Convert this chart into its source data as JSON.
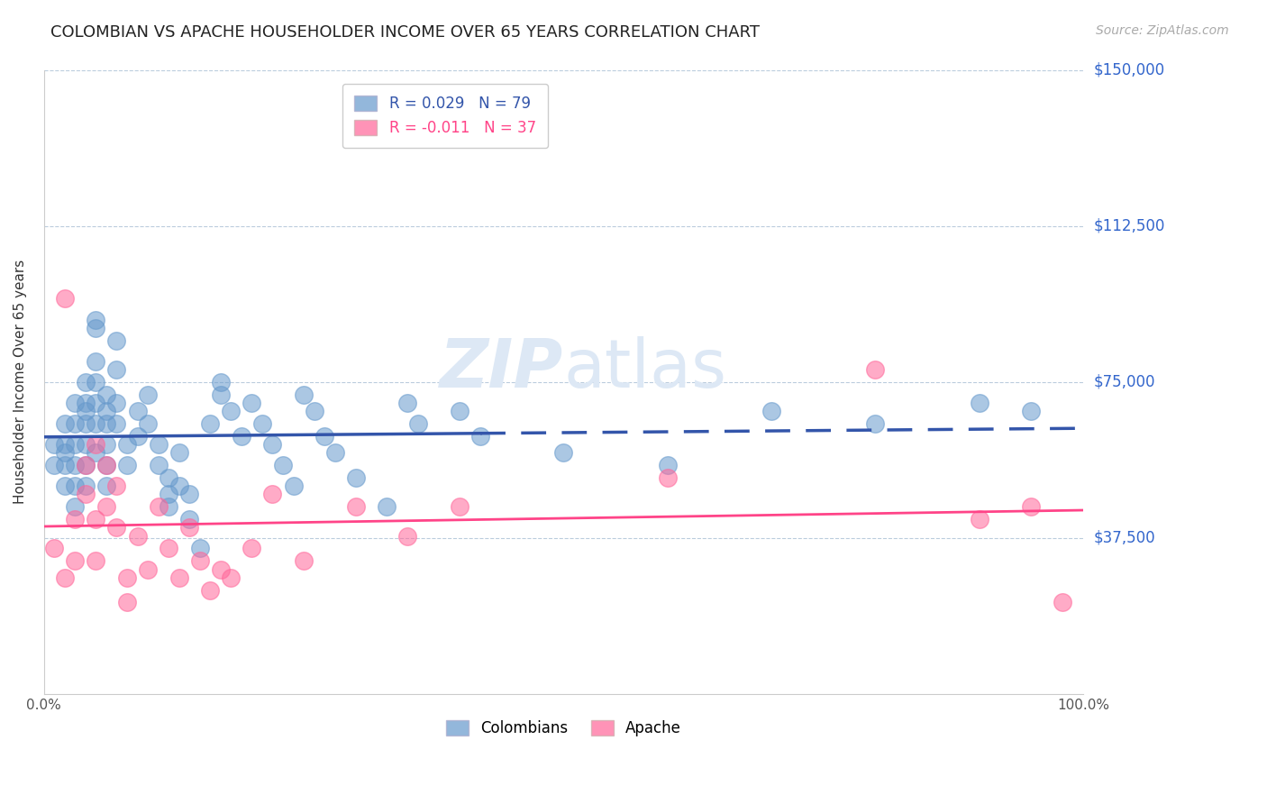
{
  "title": "COLOMBIAN VS APACHE HOUSEHOLDER INCOME OVER 65 YEARS CORRELATION CHART",
  "source": "Source: ZipAtlas.com",
  "ylabel": "Householder Income Over 65 years",
  "ylim": [
    0,
    150000
  ],
  "xlim": [
    0,
    100
  ],
  "yticks": [
    0,
    37500,
    75000,
    112500,
    150000
  ],
  "ytick_labels": [
    "",
    "$37,500",
    "$75,000",
    "$112,500",
    "$150,000"
  ],
  "colombian_R": 0.029,
  "colombian_N": 79,
  "apache_R": -0.011,
  "apache_N": 37,
  "colombian_color": "#6699cc",
  "apache_color": "#ff6699",
  "trend_colombian_color": "#3355aa",
  "trend_apache_color": "#ff4488",
  "watermark_color": "#dde8f5",
  "colombian_x": [
    1,
    1,
    2,
    2,
    2,
    2,
    2,
    3,
    3,
    3,
    3,
    3,
    3,
    4,
    4,
    4,
    4,
    4,
    4,
    4,
    5,
    5,
    5,
    5,
    5,
    5,
    5,
    6,
    6,
    6,
    6,
    6,
    6,
    7,
    7,
    7,
    7,
    8,
    8,
    9,
    9,
    10,
    10,
    11,
    11,
    12,
    12,
    12,
    13,
    13,
    14,
    14,
    15,
    16,
    17,
    17,
    18,
    19,
    20,
    21,
    22,
    23,
    24,
    25,
    26,
    27,
    28,
    30,
    33,
    35,
    36,
    40,
    42,
    50,
    60,
    70,
    80,
    90,
    95
  ],
  "colombian_y": [
    55000,
    60000,
    58000,
    65000,
    60000,
    55000,
    50000,
    70000,
    65000,
    60000,
    55000,
    50000,
    45000,
    75000,
    70000,
    68000,
    65000,
    60000,
    55000,
    50000,
    90000,
    88000,
    80000,
    75000,
    70000,
    65000,
    58000,
    72000,
    68000,
    65000,
    60000,
    55000,
    50000,
    85000,
    78000,
    70000,
    65000,
    60000,
    55000,
    68000,
    62000,
    72000,
    65000,
    60000,
    55000,
    52000,
    48000,
    45000,
    58000,
    50000,
    48000,
    42000,
    35000,
    65000,
    75000,
    72000,
    68000,
    62000,
    70000,
    65000,
    60000,
    55000,
    50000,
    72000,
    68000,
    62000,
    58000,
    52000,
    45000,
    70000,
    65000,
    68000,
    62000,
    58000,
    55000,
    68000,
    65000,
    70000,
    68000
  ],
  "apache_x": [
    1,
    2,
    2,
    3,
    3,
    4,
    4,
    5,
    5,
    5,
    6,
    6,
    7,
    7,
    8,
    8,
    9,
    10,
    11,
    12,
    13,
    14,
    15,
    16,
    17,
    18,
    20,
    22,
    25,
    30,
    35,
    40,
    60,
    80,
    90,
    95,
    98
  ],
  "apache_y": [
    35000,
    95000,
    28000,
    42000,
    32000,
    55000,
    48000,
    60000,
    42000,
    32000,
    55000,
    45000,
    50000,
    40000,
    28000,
    22000,
    38000,
    30000,
    45000,
    35000,
    28000,
    40000,
    32000,
    25000,
    30000,
    28000,
    35000,
    48000,
    32000,
    45000,
    38000,
    45000,
    52000,
    78000,
    42000,
    45000,
    22000
  ],
  "trend_split_x": 42
}
